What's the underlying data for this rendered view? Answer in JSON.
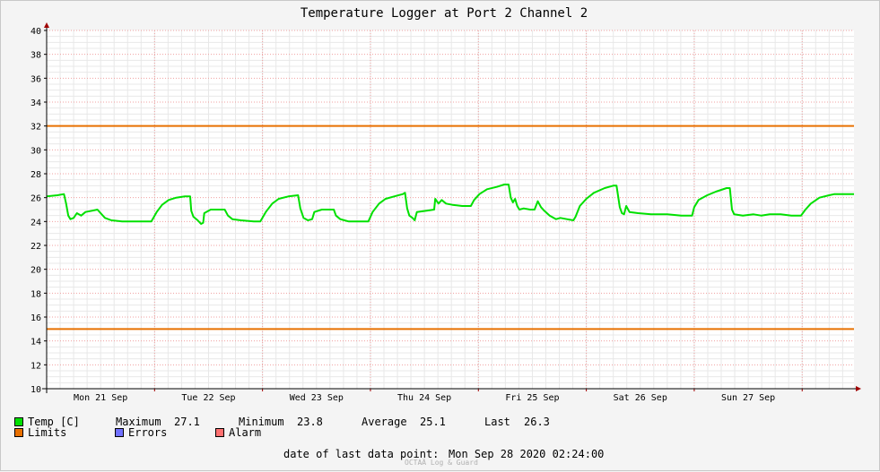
{
  "chart_data": {
    "type": "line",
    "title": "Temperature Logger at Port 2 Channel 2",
    "ylim": [
      10,
      40
    ],
    "yticks": [
      10,
      12,
      14,
      16,
      18,
      20,
      22,
      24,
      26,
      28,
      30,
      32,
      34,
      36,
      38,
      40
    ],
    "x_range_days": [
      0,
      7.48
    ],
    "day_labels": [
      "Mon 21 Sep",
      "Tue 22 Sep",
      "Wed 23 Sep",
      "Thu 24 Sep",
      "Fri 25 Sep",
      "Sat 26 Sep",
      "Sun 27 Sep"
    ],
    "grid": true,
    "limits": {
      "upper": 32,
      "lower": 15
    },
    "series": [
      {
        "name": "Temp [C]",
        "color": "#00e000",
        "points": [
          [
            0.0,
            26.1
          ],
          [
            0.1,
            26.2
          ],
          [
            0.16,
            26.3
          ],
          [
            0.18,
            25.5
          ],
          [
            0.2,
            24.5
          ],
          [
            0.22,
            24.2
          ],
          [
            0.25,
            24.3
          ],
          [
            0.28,
            24.7
          ],
          [
            0.32,
            24.5
          ],
          [
            0.36,
            24.8
          ],
          [
            0.42,
            24.9
          ],
          [
            0.47,
            25.0
          ],
          [
            0.5,
            24.7
          ],
          [
            0.54,
            24.3
          ],
          [
            0.6,
            24.1
          ],
          [
            0.7,
            24.0
          ],
          [
            0.85,
            24.0
          ],
          [
            0.97,
            24.0
          ],
          [
            1.02,
            24.8
          ],
          [
            1.07,
            25.4
          ],
          [
            1.13,
            25.8
          ],
          [
            1.2,
            26.0
          ],
          [
            1.28,
            26.1
          ],
          [
            1.33,
            26.1
          ],
          [
            1.34,
            24.9
          ],
          [
            1.36,
            24.4
          ],
          [
            1.4,
            24.1
          ],
          [
            1.43,
            23.8
          ],
          [
            1.45,
            23.9
          ],
          [
            1.46,
            24.7
          ],
          [
            1.52,
            25.0
          ],
          [
            1.65,
            25.0
          ],
          [
            1.68,
            24.5
          ],
          [
            1.72,
            24.2
          ],
          [
            1.8,
            24.1
          ],
          [
            1.92,
            24.0
          ],
          [
            1.98,
            24.0
          ],
          [
            2.03,
            24.8
          ],
          [
            2.09,
            25.5
          ],
          [
            2.15,
            25.9
          ],
          [
            2.24,
            26.1
          ],
          [
            2.33,
            26.2
          ],
          [
            2.35,
            25.1
          ],
          [
            2.38,
            24.3
          ],
          [
            2.42,
            24.1
          ],
          [
            2.46,
            24.2
          ],
          [
            2.48,
            24.8
          ],
          [
            2.55,
            25.0
          ],
          [
            2.66,
            25.0
          ],
          [
            2.68,
            24.5
          ],
          [
            2.72,
            24.2
          ],
          [
            2.8,
            24.0
          ],
          [
            2.98,
            24.0
          ],
          [
            3.02,
            24.8
          ],
          [
            3.08,
            25.5
          ],
          [
            3.14,
            25.9
          ],
          [
            3.22,
            26.1
          ],
          [
            3.3,
            26.3
          ],
          [
            3.32,
            26.4
          ],
          [
            3.34,
            25.1
          ],
          [
            3.36,
            24.5
          ],
          [
            3.39,
            24.3
          ],
          [
            3.41,
            24.1
          ],
          [
            3.43,
            24.8
          ],
          [
            3.52,
            24.9
          ],
          [
            3.59,
            25.0
          ],
          [
            3.6,
            25.9
          ],
          [
            3.63,
            25.5
          ],
          [
            3.66,
            25.8
          ],
          [
            3.7,
            25.5
          ],
          [
            3.76,
            25.4
          ],
          [
            3.85,
            25.3
          ],
          [
            3.93,
            25.3
          ],
          [
            3.96,
            25.8
          ],
          [
            4.01,
            26.3
          ],
          [
            4.08,
            26.7
          ],
          [
            4.17,
            26.9
          ],
          [
            4.24,
            27.1
          ],
          [
            4.28,
            27.1
          ],
          [
            4.3,
            26.0
          ],
          [
            4.32,
            25.6
          ],
          [
            4.34,
            25.9
          ],
          [
            4.36,
            25.3
          ],
          [
            4.38,
            25.0
          ],
          [
            4.42,
            25.1
          ],
          [
            4.48,
            25.0
          ],
          [
            4.52,
            25.0
          ],
          [
            4.55,
            25.7
          ],
          [
            4.58,
            25.2
          ],
          [
            4.61,
            24.9
          ],
          [
            4.66,
            24.5
          ],
          [
            4.72,
            24.2
          ],
          [
            4.76,
            24.3
          ],
          [
            4.82,
            24.2
          ],
          [
            4.88,
            24.1
          ],
          [
            4.9,
            24.4
          ],
          [
            4.94,
            25.3
          ],
          [
            5.0,
            25.9
          ],
          [
            5.07,
            26.4
          ],
          [
            5.17,
            26.8
          ],
          [
            5.25,
            27.0
          ],
          [
            5.28,
            27.0
          ],
          [
            5.31,
            25.2
          ],
          [
            5.33,
            24.7
          ],
          [
            5.35,
            24.6
          ],
          [
            5.37,
            25.3
          ],
          [
            5.4,
            24.8
          ],
          [
            5.48,
            24.7
          ],
          [
            5.6,
            24.6
          ],
          [
            5.75,
            24.6
          ],
          [
            5.88,
            24.5
          ],
          [
            5.98,
            24.5
          ],
          [
            6.0,
            25.2
          ],
          [
            6.04,
            25.8
          ],
          [
            6.12,
            26.2
          ],
          [
            6.2,
            26.5
          ],
          [
            6.3,
            26.8
          ],
          [
            6.33,
            26.8
          ],
          [
            6.35,
            25.0
          ],
          [
            6.37,
            24.6
          ],
          [
            6.45,
            24.5
          ],
          [
            6.55,
            24.6
          ],
          [
            6.62,
            24.5
          ],
          [
            6.7,
            24.6
          ],
          [
            6.8,
            24.6
          ],
          [
            6.9,
            24.5
          ],
          [
            6.99,
            24.5
          ],
          [
            7.03,
            25.0
          ],
          [
            7.08,
            25.5
          ],
          [
            7.16,
            26.0
          ],
          [
            7.25,
            26.2
          ],
          [
            7.3,
            26.3
          ],
          [
            7.48,
            26.3
          ]
        ]
      },
      {
        "name": "Limits",
        "color": "#e87000"
      },
      {
        "name": "Errors",
        "color": "#7070ff"
      },
      {
        "name": "Alarm",
        "color": "#ff7070"
      }
    ],
    "stats": {
      "maximum_label": "Maximum",
      "maximum": "27.1",
      "minimum_label": "Minimum",
      "minimum": "23.8",
      "average_label": "Average",
      "average": "25.1",
      "last_label": "Last",
      "last": "26.3"
    }
  },
  "footer": {
    "last_data_label": "date of last data point:",
    "last_data_value": "Mon Sep 28 2020 02:24:00",
    "credit": "OCTAÄ Log & Guard"
  }
}
